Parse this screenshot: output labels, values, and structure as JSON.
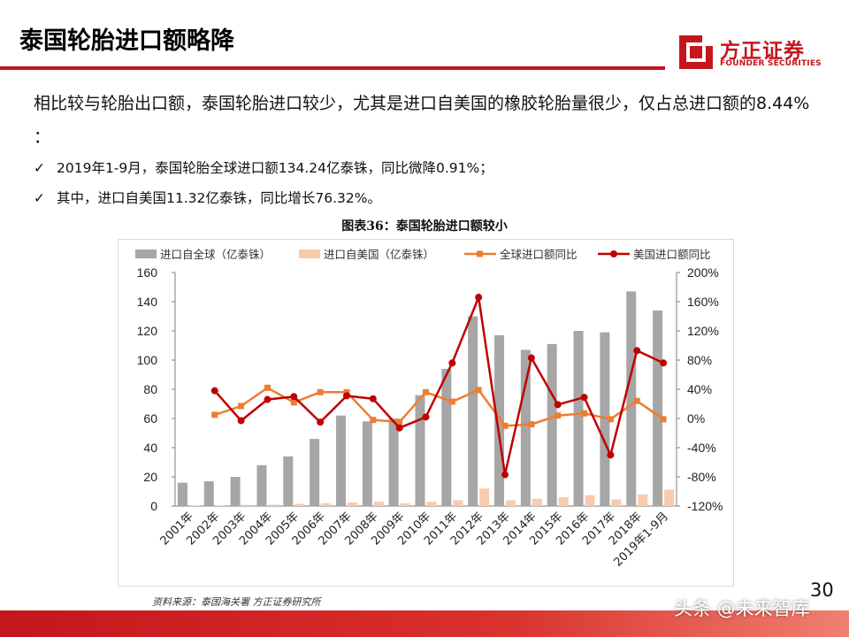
{
  "header": {
    "title": "泰国轮胎进口额略降",
    "logo_cn": "方正证券",
    "logo_en": "FOUNDER SECURITIES"
  },
  "intro": "相比较与轮胎出口额，泰国轮胎进口较少，尤其是进口自美国的橡胶轮胎量很少，仅占总进口额的8.44% ：",
  "bullets": [
    {
      "check": "✓",
      "text": "2019年1-9月，泰国轮胎全球进口额134.24亿泰铢，同比微降0.91%；"
    },
    {
      "check": "✓",
      "text": "其中，进口自美国11.32亿泰铢，同比增长76.32%。"
    }
  ],
  "chart_title": "图表36：泰国轮胎进口额较小",
  "source": "资料来源：泰国海关署  方正证券研究所",
  "page_number": "30",
  "watermark": "头条 @未来智库",
  "colors": {
    "brand_red": "#c4161c",
    "global_bar": "#a6a6a6",
    "us_bar": "#f8cbad",
    "global_yoy": "#ed7d31",
    "us_yoy": "#c00000"
  },
  "chart_data": {
    "type": "bar+line",
    "categories": [
      "2001年",
      "2002年",
      "2003年",
      "2004年",
      "2005年",
      "2006年",
      "2007年",
      "2008年",
      "2009年",
      "2010年",
      "2011年",
      "2012年",
      "2013年",
      "2014年",
      "2015年",
      "2016年",
      "2017年",
      "2018年",
      "2019年1-9月"
    ],
    "left_axis": {
      "min": 0,
      "max": 160,
      "ticks": [
        0,
        20,
        40,
        60,
        80,
        100,
        120,
        140,
        160
      ]
    },
    "right_axis": {
      "min": -120,
      "max": 200,
      "ticks": [
        "-120%",
        "-80%",
        "-40%",
        "0%",
        "40%",
        "80%",
        "120%",
        "160%",
        "200%"
      ],
      "tick_values": [
        -120,
        -80,
        -40,
        0,
        40,
        80,
        120,
        160,
        200
      ]
    },
    "series": [
      {
        "name": "进口自全球（亿泰铢）",
        "type": "bar",
        "axis": "left",
        "values": [
          16,
          17,
          20,
          28,
          34,
          46,
          62,
          58,
          60,
          76,
          94,
          130,
          117,
          107,
          111,
          120,
          119,
          147,
          134
        ]
      },
      {
        "name": "进口自美国（亿泰铢）",
        "type": "bar",
        "axis": "left",
        "values": [
          0.5,
          0.5,
          0.8,
          1.0,
          1.5,
          2.0,
          2.5,
          3.0,
          2.0,
          3.0,
          4.0,
          12.0,
          4.0,
          5.0,
          6.0,
          7.5,
          4.5,
          8.0,
          11.3
        ]
      },
      {
        "name": "全球进口额同比",
        "type": "line",
        "axis": "right",
        "values": [
          null,
          5,
          17,
          42,
          22,
          36,
          36,
          -2,
          -5,
          36,
          23,
          39,
          -10,
          -8,
          4,
          7,
          -1,
          24,
          -1
        ]
      },
      {
        "name": "美国进口额同比",
        "type": "line",
        "axis": "right",
        "values": [
          null,
          38,
          -3,
          26,
          30,
          -5,
          31,
          27,
          -13,
          2,
          76,
          166,
          -77,
          83,
          19,
          29,
          -50,
          93,
          76
        ]
      }
    ]
  }
}
